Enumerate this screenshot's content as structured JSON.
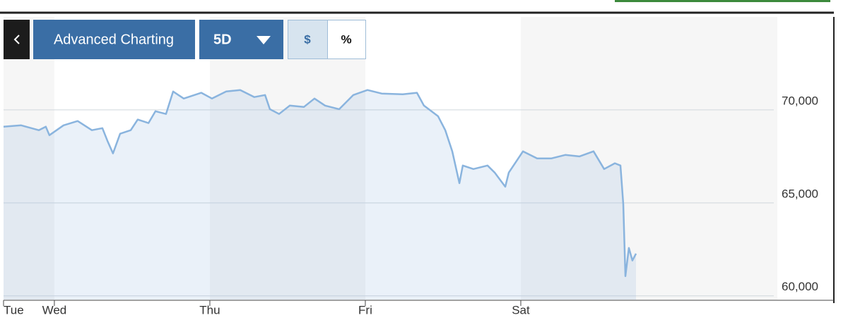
{
  "toolbar": {
    "chart_button": "Advanced Charting",
    "range": "5D",
    "currency": "$",
    "percent": "%"
  },
  "chart_data": {
    "type": "line",
    "x": [
      0.673,
      0.786,
      0.9,
      0.945,
      0.968,
      1.059,
      1.15,
      1.241,
      1.309,
      1.341,
      1.377,
      1.423,
      1.491,
      1.536,
      1.605,
      1.65,
      1.718,
      1.764,
      1.832,
      1.945,
      2.014,
      2.105,
      2.195,
      2.286,
      2.355,
      2.386,
      2.445,
      2.514,
      2.605,
      2.673,
      2.741,
      2.832,
      2.923,
      3.014,
      3.105,
      3.241,
      3.332,
      3.377,
      3.468,
      3.514,
      3.559,
      3.605,
      3.627,
      3.695,
      3.786,
      3.832,
      3.9,
      3.923,
      4.014,
      4.105,
      4.195,
      4.286,
      4.377,
      4.468,
      4.536,
      4.605,
      4.641,
      4.659,
      4.673,
      4.695,
      4.718,
      4.741
    ],
    "series": [
      {
        "color": "#8ab4de",
        "values": [
          69100,
          69170,
          68910,
          69100,
          68640,
          69170,
          69400,
          68910,
          69020,
          68340,
          67660,
          68720,
          68910,
          69480,
          69290,
          69930,
          69780,
          70990,
          70610,
          70920,
          70610,
          70990,
          71070,
          70690,
          70800,
          70040,
          69780,
          70230,
          70160,
          70610,
          70230,
          70040,
          70800,
          71070,
          70880,
          70840,
          70920,
          70230,
          69660,
          68910,
          67770,
          66060,
          67010,
          66820,
          67010,
          66630,
          65870,
          66630,
          67770,
          67390,
          67390,
          67580,
          67500,
          67770,
          66820,
          67130,
          67010,
          64930,
          61060,
          62580,
          61900,
          62270
        ]
      }
    ],
    "xlim": [
      0.673,
      5.65
    ],
    "xticks": [
      {
        "value": 0.673,
        "label": "Tue"
      },
      {
        "value": 1,
        "label": "Wed"
      },
      {
        "value": 2,
        "label": "Thu"
      },
      {
        "value": 3,
        "label": "Fri"
      },
      {
        "value": 4,
        "label": "Sat"
      }
    ],
    "ylim": [
      59800,
      75000
    ],
    "yticks": [
      {
        "value": 60000,
        "label": "60,000"
      },
      {
        "value": 65000,
        "label": "65,000"
      },
      {
        "value": 70000,
        "label": "70,000"
      }
    ],
    "grid": true
  }
}
